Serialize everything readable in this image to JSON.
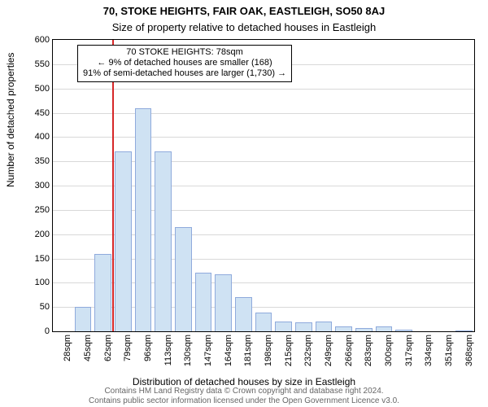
{
  "title_line1": "70, STOKE HEIGHTS, FAIR OAK, EASTLEIGH, SO50 8AJ",
  "title_line2": "Size of property relative to detached houses in Eastleigh",
  "ylabel": "Number of detached properties",
  "xlabel": "Distribution of detached houses by size in Eastleigh",
  "footer_line1": "Contains HM Land Registry data © Crown copyright and database right 2024.",
  "footer_line2": "Contains public sector information licensed under the Open Government Licence v3.0.",
  "font": {
    "title1_size": 13,
    "title2_size": 13,
    "axis_label_size": 12,
    "tick_size": 11,
    "footer_size": 10,
    "annotation_size": 11
  },
  "colors": {
    "background": "#ffffff",
    "title": "#000000",
    "axis_text": "#000000",
    "grid": "#d9d9d9",
    "bar_fill": "#cfe2f3",
    "bar_edge": "#8faadc",
    "marker_line": "#d62728",
    "footer_text": "#666666",
    "box_border": "#000000"
  },
  "chart": {
    "type": "histogram",
    "y": {
      "min": 0,
      "max": 600,
      "step": 50
    },
    "x": {
      "unit": "sqm",
      "bin_start": 28,
      "bin_width": 17,
      "bin_count": 21
    },
    "bar_counts": [
      0,
      50,
      160,
      370,
      460,
      370,
      215,
      120,
      118,
      70,
      38,
      20,
      18,
      20,
      10,
      6,
      10,
      3,
      0,
      0,
      2
    ],
    "bar_rel_width": 0.85,
    "marker_value": 78,
    "annotation": {
      "line1": "70 STOKE HEIGHTS: 78sqm",
      "line2": "← 9% of detached houses are smaller (168)",
      "line3": "91% of semi-detached houses are larger (1,730) →"
    }
  }
}
